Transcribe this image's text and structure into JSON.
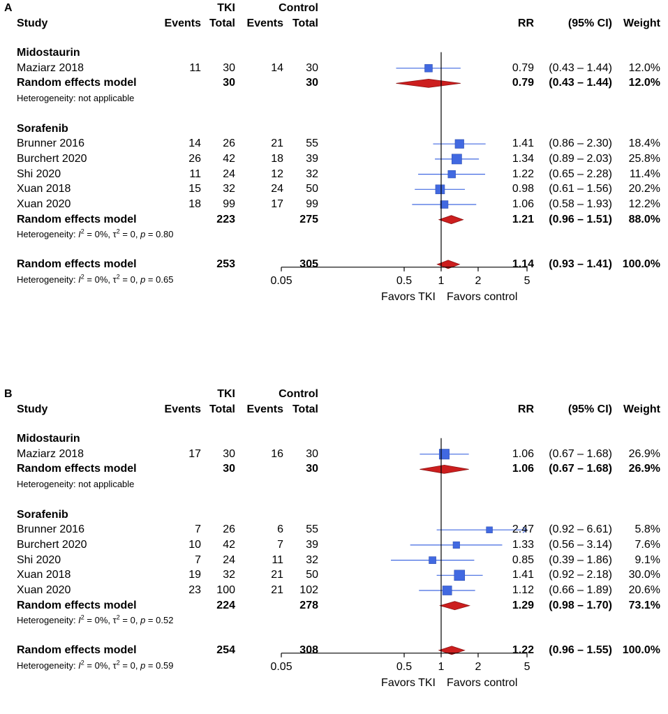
{
  "colors": {
    "square": "#4169E1",
    "diamond": "#CC1E1E",
    "line": "#000000",
    "ci_line": "#4169E1"
  },
  "axis": {
    "ticks": [
      0.05,
      0.5,
      1,
      2,
      5
    ],
    "tick_labels": [
      "0.05",
      "0.5",
      "1",
      "2",
      "5"
    ],
    "favors_left": "Favors TKI",
    "favors_right": "Favors control"
  },
  "headers": {
    "tki": "TKI",
    "control": "Control",
    "study": "Study",
    "events": "Events",
    "total": "Total",
    "events2": "Events",
    "total2": "Total",
    "rr": "RR",
    "ci": "(95% CI)",
    "weight": "Weight"
  },
  "het_parts": {
    "prefix": "Heterogeneity: ",
    "i2": "I",
    "i2_sup": "2",
    "i2_val": " = 0%, ",
    "tau2": "τ",
    "tau2_sup": "2",
    "tau2_val": " = 0, ",
    "p": "p",
    "p_eq": " = "
  },
  "chart_data": [
    {
      "type": "forest",
      "panel_label": "A",
      "subgroups": [
        {
          "name": "Midostaurin",
          "studies": [
            {
              "name": "Maziarz 2018",
              "e1": "11",
              "n1": "30",
              "e2": "14",
              "n2": "30",
              "rr": 0.79,
              "lo": 0.43,
              "hi": 1.44,
              "rr_text": "0.79",
              "ci_text": "(0.43 – 1.44)",
              "weight_text": "12.0%",
              "weight": 12.0
            }
          ],
          "pooled": {
            "label": "Random effects model",
            "n1": "30",
            "n2": "30",
            "rr": 0.79,
            "lo": 0.43,
            "hi": 1.44,
            "rr_text": "0.79",
            "ci_text": "(0.43 – 1.44)",
            "weight_text": "12.0%"
          },
          "heterogeneity_text": "Heterogeneity: not applicable",
          "het_p": null
        },
        {
          "name": "Sorafenib",
          "studies": [
            {
              "name": "Brunner 2016",
              "e1": "14",
              "n1": "26",
              "e2": "21",
              "n2": "55",
              "rr": 1.41,
              "lo": 0.86,
              "hi": 2.3,
              "rr_text": "1.41",
              "ci_text": "(0.86 – 2.30)",
              "weight_text": "18.4%",
              "weight": 18.4
            },
            {
              "name": "Burchert 2020",
              "e1": "26",
              "n1": "42",
              "e2": "18",
              "n2": "39",
              "rr": 1.34,
              "lo": 0.89,
              "hi": 2.03,
              "rr_text": "1.34",
              "ci_text": "(0.89 – 2.03)",
              "weight_text": "25.8%",
              "weight": 25.8
            },
            {
              "name": "Shi 2020",
              "e1": "11",
              "n1": "24",
              "e2": "12",
              "n2": "32",
              "rr": 1.22,
              "lo": 0.65,
              "hi": 2.28,
              "rr_text": "1.22",
              "ci_text": "(0.65 – 2.28)",
              "weight_text": "11.4%",
              "weight": 11.4
            },
            {
              "name": "Xuan 2018",
              "e1": "15",
              "n1": "32",
              "e2": "24",
              "n2": "50",
              "rr": 0.98,
              "lo": 0.61,
              "hi": 1.56,
              "rr_text": "0.98",
              "ci_text": "(0.61 – 1.56)",
              "weight_text": "20.2%",
              "weight": 20.2
            },
            {
              "name": "Xuan 2020",
              "e1": "18",
              "n1": "99",
              "e2": "17",
              "n2": "99",
              "rr": 1.06,
              "lo": 0.58,
              "hi": 1.93,
              "rr_text": "1.06",
              "ci_text": "(0.58 – 1.93)",
              "weight_text": "12.2%",
              "weight": 12.2
            }
          ],
          "pooled": {
            "label": "Random effects model",
            "n1": "223",
            "n2": "275",
            "rr": 1.21,
            "lo": 0.96,
            "hi": 1.51,
            "rr_text": "1.21",
            "ci_text": "(0.96 – 1.51)",
            "weight_text": "88.0%"
          },
          "heterogeneity_text": null,
          "het_p": "0.80"
        }
      ],
      "overall": {
        "label": "Random effects model",
        "n1": "253",
        "n2": "305",
        "rr": 1.14,
        "lo": 0.93,
        "hi": 1.41,
        "rr_text": "1.14",
        "ci_text": "(0.93 – 1.41)",
        "weight_text": "100.0%",
        "het_p": "0.65"
      }
    },
    {
      "type": "forest",
      "panel_label": "B",
      "subgroups": [
        {
          "name": "Midostaurin",
          "studies": [
            {
              "name": "Maziarz 2018",
              "e1": "17",
              "n1": "30",
              "e2": "16",
              "n2": "30",
              "rr": 1.06,
              "lo": 0.67,
              "hi": 1.68,
              "rr_text": "1.06",
              "ci_text": "(0.67 – 1.68)",
              "weight_text": "26.9%",
              "weight": 26.9
            }
          ],
          "pooled": {
            "label": "Random effects model",
            "n1": "30",
            "n2": "30",
            "rr": 1.06,
            "lo": 0.67,
            "hi": 1.68,
            "rr_text": "1.06",
            "ci_text": "(0.67 – 1.68)",
            "weight_text": "26.9%"
          },
          "heterogeneity_text": "Heterogeneity: not applicable",
          "het_p": null
        },
        {
          "name": "Sorafenib",
          "studies": [
            {
              "name": "Brunner 2016",
              "e1": "7",
              "n1": "26",
              "e2": "6",
              "n2": "55",
              "rr": 2.47,
              "lo": 0.92,
              "hi": 6.61,
              "rr_text": "2.47",
              "ci_text": "(0.92 – 6.61)",
              "weight_text": "5.8%",
              "weight": 5.8
            },
            {
              "name": "Burchert 2020",
              "e1": "10",
              "n1": "42",
              "e2": "7",
              "n2": "39",
              "rr": 1.33,
              "lo": 0.56,
              "hi": 3.14,
              "rr_text": "1.33",
              "ci_text": "(0.56 – 3.14)",
              "weight_text": "7.6%",
              "weight": 7.6
            },
            {
              "name": "Shi 2020",
              "e1": "7",
              "n1": "24",
              "e2": "11",
              "n2": "32",
              "rr": 0.85,
              "lo": 0.39,
              "hi": 1.86,
              "rr_text": "0.85",
              "ci_text": "(0.39 – 1.86)",
              "weight_text": "9.1%",
              "weight": 9.1
            },
            {
              "name": "Xuan 2018",
              "e1": "19",
              "n1": "32",
              "e2": "21",
              "n2": "50",
              "rr": 1.41,
              "lo": 0.92,
              "hi": 2.18,
              "rr_text": "1.41",
              "ci_text": "(0.92 – 2.18)",
              "weight_text": "30.0%",
              "weight": 30.0
            },
            {
              "name": "Xuan 2020",
              "e1": "23",
              "n1": "100",
              "e2": "21",
              "n2": "102",
              "rr": 1.12,
              "lo": 0.66,
              "hi": 1.89,
              "rr_text": "1.12",
              "ci_text": "(0.66 – 1.89)",
              "weight_text": "20.6%",
              "weight": 20.6
            }
          ],
          "pooled": {
            "label": "Random effects model",
            "n1": "224",
            "n2": "278",
            "rr": 1.29,
            "lo": 0.98,
            "hi": 1.7,
            "rr_text": "1.29",
            "ci_text": "(0.98 – 1.70)",
            "weight_text": "73.1%"
          },
          "heterogeneity_text": null,
          "het_p": "0.52"
        }
      ],
      "overall": {
        "label": "Random effects model",
        "n1": "254",
        "n2": "308",
        "rr": 1.22,
        "lo": 0.96,
        "hi": 1.55,
        "rr_text": "1.22",
        "ci_text": "(0.96 – 1.55)",
        "weight_text": "100.0%",
        "het_p": "0.59"
      }
    }
  ]
}
